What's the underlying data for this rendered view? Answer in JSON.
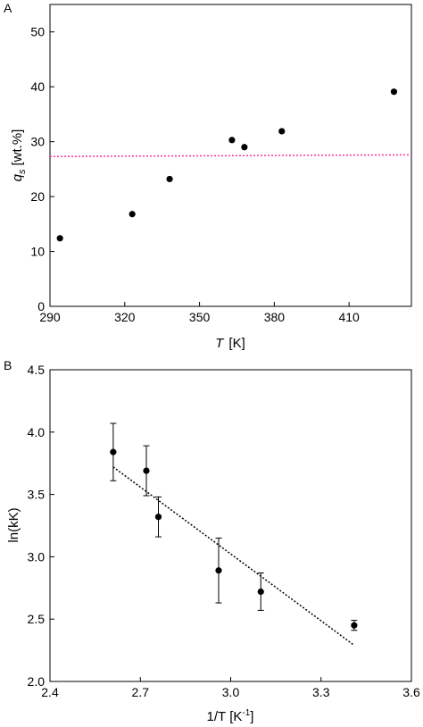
{
  "chart_data": [
    {
      "panel_label": "A",
      "type": "scatter",
      "xlabel": {
        "main": "T",
        "unit": "[K]"
      },
      "ylabel": {
        "main": "q",
        "sub": "s",
        "unit": "[wt.%]"
      },
      "xlim": [
        290,
        435
      ],
      "ylim": [
        0,
        55
      ],
      "xticks": [
        290,
        320,
        350,
        380,
        410
      ],
      "yticks": [
        0,
        10,
        20,
        30,
        40,
        50
      ],
      "points": [
        {
          "x": 294,
          "y": 12.4
        },
        {
          "x": 323,
          "y": 16.8
        },
        {
          "x": 338,
          "y": 23.2
        },
        {
          "x": 363,
          "y": 30.3
        },
        {
          "x": 368,
          "y": 29.0
        },
        {
          "x": 383,
          "y": 31.9
        },
        {
          "x": 428,
          "y": 39.1
        }
      ],
      "reference_line": {
        "x": [
          290,
          435
        ],
        "y": [
          27.3,
          27.6
        ],
        "style": "dotted",
        "color": "#ff3399"
      },
      "grid": false
    },
    {
      "panel_label": "B",
      "type": "scatter",
      "xlabel": {
        "main": "1/T",
        "unit": "[K",
        "sup": "-1",
        "close": "]"
      },
      "ylabel": {
        "main": "ln(kK)"
      },
      "xlim": [
        2.4,
        3.6
      ],
      "ylim": [
        2.0,
        4.5
      ],
      "xticks": [
        2.4,
        2.7,
        3.0,
        3.3,
        3.6
      ],
      "yticks": [
        2.0,
        2.5,
        3.0,
        3.5,
        4.0,
        4.5
      ],
      "points": [
        {
          "x": 2.61,
          "y": 3.84,
          "err_low": 0.23,
          "err_high": 0.23
        },
        {
          "x": 2.72,
          "y": 3.69,
          "err_low": 0.2,
          "err_high": 0.2
        },
        {
          "x": 2.76,
          "y": 3.32,
          "err_low": 0.16,
          "err_high": 0.16
        },
        {
          "x": 2.96,
          "y": 2.89,
          "err_low": 0.26,
          "err_high": 0.26
        },
        {
          "x": 3.1,
          "y": 2.72,
          "err_low": 0.15,
          "err_high": 0.15
        },
        {
          "x": 3.41,
          "y": 2.45,
          "err_low": 0.04,
          "err_high": 0.04
        }
      ],
      "fit_line": {
        "x": [
          2.61,
          3.41
        ],
        "y": [
          3.72,
          2.29
        ],
        "style": "dotted",
        "color": "#000000"
      },
      "grid": false
    }
  ]
}
